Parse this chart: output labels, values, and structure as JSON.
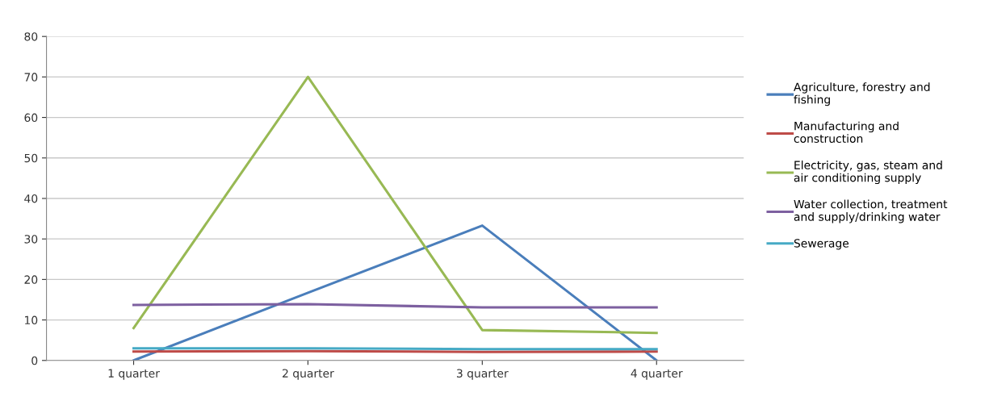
{
  "chart_data": {
    "type": "line",
    "categories": [
      "1 quarter",
      "2 quarter",
      "3 quarter",
      "4 quarter"
    ],
    "series": [
      {
        "name": "Agriculture, forestry and fishing",
        "color": "#4a7ebb",
        "values": [
          0,
          16.7,
          33.3,
          0
        ]
      },
      {
        "name": "Manufacturing and construction",
        "color": "#be4b48",
        "values": [
          2.2,
          2.3,
          2.1,
          2.2
        ]
      },
      {
        "name": "Electricity, gas, steam and air conditioning supply",
        "color": "#98b954",
        "values": [
          8,
          70,
          7.5,
          6.8
        ]
      },
      {
        "name": "Water collection, treatment and supply/drinking water",
        "color": "#7d60a0",
        "values": [
          13.7,
          13.9,
          13.1,
          13.1
        ]
      },
      {
        "name": "Sewerage",
        "color": "#46aac5",
        "values": [
          3,
          3,
          2.8,
          2.8
        ]
      }
    ],
    "ylim": [
      0,
      80
    ],
    "yticks": [
      0,
      10,
      20,
      30,
      40,
      50,
      60,
      70,
      80
    ],
    "grid": "y",
    "legend": "right",
    "line_style": "solid",
    "marker": "none"
  }
}
